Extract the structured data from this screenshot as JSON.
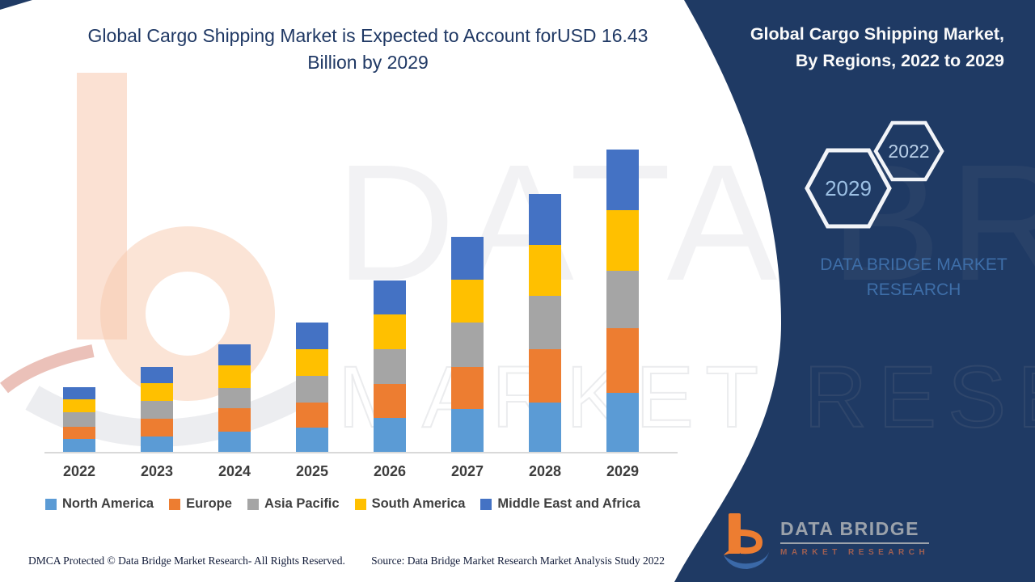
{
  "header": {
    "title_line1": "Global Cargo Shipping Market is Expected to Account forUSD 16.43",
    "title_line2": "Billion by 2029"
  },
  "panel": {
    "title_line1": "Global Cargo Shipping Market,",
    "title_line2": "By Regions, 2022 to 2029",
    "hexagon_front_label": "2029",
    "hexagon_back_label": "2022",
    "brand_line1": "DATA BRIDGE MARKET",
    "brand_line2": "RESEARCH",
    "logo_name": "DATA BRIDGE",
    "logo_subtitle": "MARKET RESEARCH",
    "panel_color": "#1F3A64",
    "hexagon_text_color": "#A9C6E8"
  },
  "watermark": {
    "line1": "DATA BRIDGE",
    "line2": "MARKET RESEARCH"
  },
  "footer": {
    "left": "DMCA Protected © Data Bridge Market Research- All Rights Reserved.",
    "right": "Source: Data Bridge Market Research Market Analysis Study 2022"
  },
  "chart_data": {
    "type": "bar",
    "stacked": true,
    "title": "Global Cargo Shipping Market is Expected to Account forUSD 16.43 Billion by 2029",
    "unit": "USD Billion",
    "categories": [
      "2022",
      "2023",
      "2024",
      "2025",
      "2026",
      "2027",
      "2028",
      "2029"
    ],
    "series": [
      {
        "name": "North America",
        "color": "#5B9BD5",
        "values": [
          0.74,
          0.88,
          1.14,
          1.36,
          1.88,
          2.37,
          2.72,
          3.24
        ]
      },
      {
        "name": "Europe",
        "color": "#ED7D31",
        "values": [
          0.66,
          0.96,
          1.27,
          1.36,
          1.84,
          2.28,
          2.89,
          3.5
        ]
      },
      {
        "name": "Asia Pacific",
        "color": "#A5A5A5",
        "values": [
          0.79,
          0.96,
          1.1,
          1.45,
          1.88,
          2.41,
          2.89,
          3.11
        ]
      },
      {
        "name": "South America",
        "color": "#FFC000",
        "values": [
          0.7,
          0.96,
          1.23,
          1.45,
          1.88,
          2.32,
          2.76,
          3.29
        ]
      },
      {
        "name": "Middle East and Africa",
        "color": "#4472C4",
        "values": [
          0.66,
          0.88,
          1.14,
          1.45,
          1.84,
          2.32,
          2.76,
          3.29
        ]
      }
    ],
    "totals": [
      3.55,
      4.64,
      5.88,
      7.07,
      9.32,
      11.7,
      14.02,
      16.43
    ],
    "highlight_total_2029": 16.43,
    "xlabel": "",
    "ylabel": "",
    "ylim": [
      0,
      16.43
    ],
    "grid": false,
    "legend_position": "bottom"
  }
}
